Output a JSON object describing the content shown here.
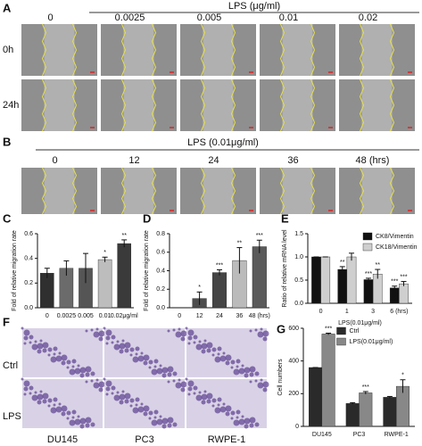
{
  "panels": {
    "a": {
      "label": "A",
      "header": "LPS (μg/ml)",
      "columns": [
        "0",
        "0.0025",
        "0.005",
        "0.01",
        "0.02"
      ],
      "rows": [
        "0h",
        "24h"
      ]
    },
    "b": {
      "label": "B",
      "header": "LPS (0.01μg/ml)",
      "columns": [
        "0",
        "12",
        "24",
        "36",
        "48 (hrs)"
      ]
    },
    "c": {
      "label": "C"
    },
    "d": {
      "label": "D"
    },
    "e": {
      "label": "E"
    },
    "f": {
      "label": "F",
      "columns": [
        "DU145",
        "PC3",
        "RWPE-1"
      ],
      "rows": [
        "Ctrl",
        "LPS"
      ]
    },
    "g": {
      "label": "G"
    }
  },
  "chart_data": [
    {
      "type": "bar",
      "ylabel": "Fold of relative migration rate",
      "categories": [
        "0",
        "0.0025",
        "0.005",
        "0.01",
        "0.02μg/ml"
      ],
      "series": [
        {
          "values": [
            0.28,
            0.32,
            0.32,
            0.39,
            0.52
          ],
          "errors": [
            0.04,
            0.06,
            0.12,
            0.02,
            0.03
          ],
          "colors": [
            "#2f2f2f",
            "#6b6b6b",
            "#555555",
            "#bdbdbd",
            "#3a3a3a"
          ],
          "annotations": [
            null,
            null,
            null,
            "*",
            "**"
          ]
        }
      ],
      "ylim": [
        0,
        0.6
      ],
      "yticks": [
        {
          "value": 0,
          "label": "0.0"
        },
        0.2,
        0.4,
        0.6
      ]
    },
    {
      "type": "bar",
      "ylabel": "Fold of relative migration rate",
      "categories": [
        "0",
        "12",
        "24",
        "36",
        "48 (hrs)"
      ],
      "series": [
        {
          "values": [
            0,
            0.1,
            0.38,
            0.51,
            0.66
          ],
          "errors": [
            0,
            0.07,
            0.03,
            0.14,
            0.07
          ],
          "colors": [
            "#2f2f2f",
            "#4d4d4d",
            "#444444",
            "#bbbbbb",
            "#5a5a5a"
          ],
          "annotations": [
            null,
            "*",
            "***",
            "**",
            "***"
          ]
        }
      ],
      "ylim": [
        0,
        0.8
      ],
      "yticks": [
        {
          "value": 0,
          "label": "0.0"
        },
        0.2,
        0.4,
        0.6,
        0.8
      ]
    },
    {
      "type": "bar",
      "ylabel": "Ratio of relative mRNA level",
      "xlabel": "LPS(0.01μg/ml)",
      "categories": [
        "0",
        "1",
        "3",
        "6 (hrs)"
      ],
      "series": [
        {
          "name": "CK8/Vimentin",
          "color": "#111111",
          "values": [
            1.0,
            0.73,
            0.51,
            0.33
          ],
          "errors": [
            0,
            0.06,
            0.03,
            0.04
          ],
          "annotations": [
            null,
            "**",
            "***",
            "***"
          ]
        },
        {
          "name": "CK18/Vimentin",
          "color": "#cfcfcf",
          "values": [
            1.0,
            1.0,
            0.63,
            0.42
          ],
          "errors": [
            0,
            0.08,
            0.1,
            0.05
          ],
          "annotations": [
            null,
            null,
            "**",
            "***"
          ]
        }
      ],
      "ylim": [
        0,
        1.5
      ],
      "yticks": [
        {
          "value": 0,
          "label": "0.0"
        },
        0.5,
        {
          "value": 1,
          "label": "1.0"
        },
        1.5
      ],
      "legend": "upper right"
    },
    {
      "type": "bar",
      "ylabel": "Cell numbers",
      "categories": [
        "DU145",
        "PC3",
        "RWPE-1"
      ],
      "series": [
        {
          "name": "Ctrl",
          "color": "#2a2a2a",
          "values": [
            360,
            140,
            178
          ],
          "errors": [
            0,
            5,
            5
          ],
          "annotations": [
            null,
            null,
            null
          ]
        },
        {
          "name": "LPS(0.01μg/ml)",
          "color": "#888888",
          "values": [
            565,
            205,
            245
          ],
          "errors": [
            5,
            8,
            40
          ],
          "annotations": [
            "***",
            "***",
            "*"
          ]
        }
      ],
      "ylim": [
        0,
        600
      ],
      "yticks": [
        0,
        200,
        400,
        600
      ],
      "legend": "upper center"
    }
  ]
}
